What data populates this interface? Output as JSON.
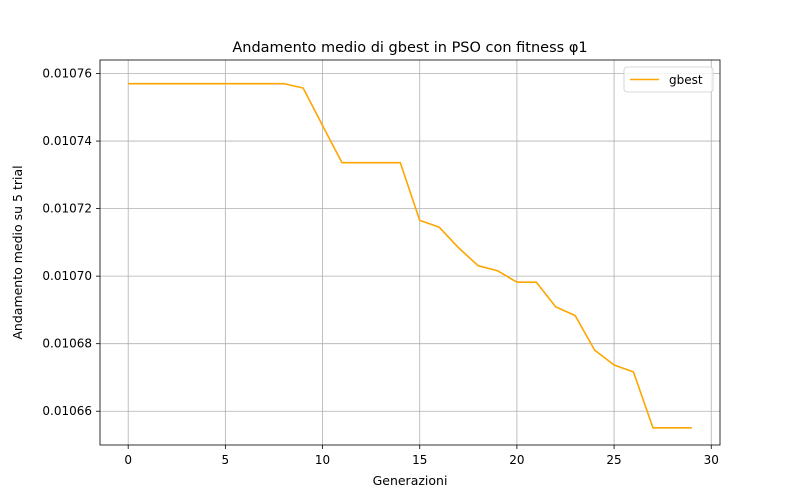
{
  "chart_data": {
    "type": "line",
    "title": "Andamento medio di gbest in PSO con fitness φ1",
    "xlabel": "Generazioni",
    "ylabel": "Andamento medio su 5 trial",
    "xlim": [
      -1.45,
      30.45
    ],
    "ylim": [
      0.01065,
      0.010764
    ],
    "xticks": [
      0,
      5,
      10,
      15,
      20,
      25,
      30
    ],
    "yticks": [
      0.01066,
      0.01068,
      0.0107,
      0.01072,
      0.01074,
      0.01076
    ],
    "xtick_labels": [
      "0",
      "5",
      "10",
      "15",
      "20",
      "25",
      "30"
    ],
    "ytick_labels": [
      "0.01066",
      "0.01068",
      "0.01070",
      "0.01072",
      "0.01074",
      "0.01076"
    ],
    "grid": true,
    "legend": {
      "position": "top-right",
      "entries": [
        "gbest"
      ]
    },
    "series": [
      {
        "name": "gbest",
        "color": "#ffa500",
        "x": [
          0,
          1,
          2,
          3,
          4,
          5,
          6,
          7,
          8,
          9,
          10,
          11,
          12,
          13,
          14,
          15,
          16,
          17,
          18,
          19,
          20,
          21,
          22,
          23,
          24,
          25,
          26,
          27,
          28,
          29
        ],
        "y": [
          0.010757,
          0.010757,
          0.010757,
          0.010757,
          0.010757,
          0.010757,
          0.010757,
          0.010757,
          0.010757,
          0.0107557,
          0.0107446,
          0.0107336,
          0.0107336,
          0.0107336,
          0.0107336,
          0.0107165,
          0.0107145,
          0.0107084,
          0.0107031,
          0.0107016,
          0.0106982,
          0.0106982,
          0.0106909,
          0.0106883,
          0.0106781,
          0.0106737,
          0.0106716,
          0.0106551,
          0.0106551,
          0.0106551
        ]
      }
    ]
  }
}
